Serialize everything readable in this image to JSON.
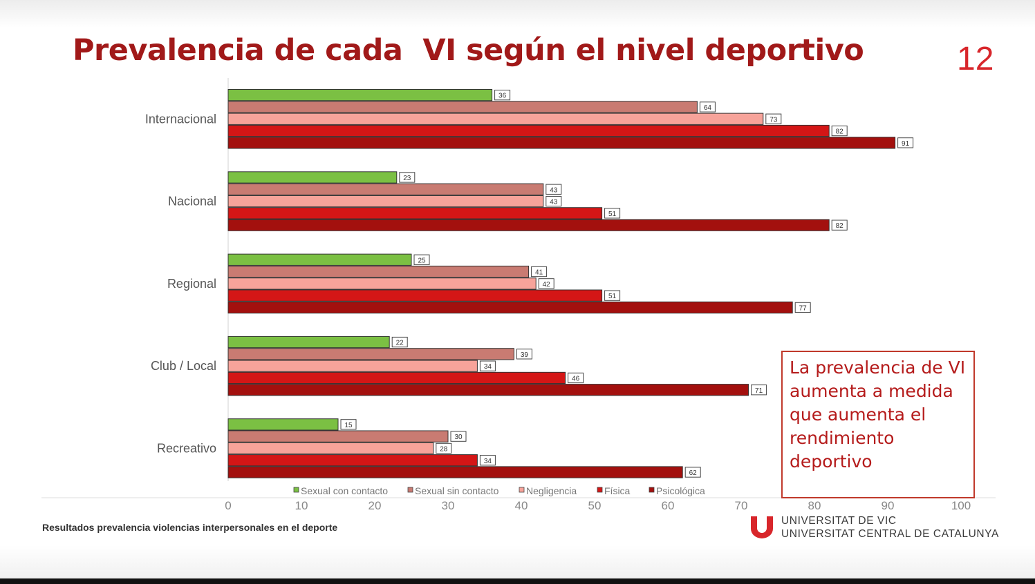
{
  "slide": {
    "title": "Prevalencia de cada  VI según el nivel deportivo",
    "page_number": "12",
    "callout": "La prevalencia de VI aumenta a medida que aumenta el rendimiento deportivo",
    "footer": "Resultados prevalencia violencias interpersonales en el deporte",
    "institution_line1": "UNIVERSITAT DE VIC",
    "institution_line2": "UNIVERSITAT CENTRAL DE CATALUNYA",
    "logo_icon": "university-u-logo",
    "accent_color": "#a11919"
  },
  "chart_data": {
    "type": "bar",
    "orientation": "horizontal",
    "categories": [
      "Internacional",
      "Nacional",
      "Regional",
      "Club / Local",
      "Recreativo"
    ],
    "series": [
      {
        "name": "Sexual con contacto",
        "color": "#7bc043",
        "values": [
          36,
          23,
          25,
          22,
          15
        ]
      },
      {
        "name": "Sexual sin contacto",
        "color": "#c97b72",
        "values": [
          64,
          43,
          41,
          39,
          30
        ]
      },
      {
        "name": "Negligencia",
        "color": "#f7a39a",
        "values": [
          73,
          43,
          42,
          34,
          28
        ]
      },
      {
        "name": "Física",
        "color": "#d41616",
        "values": [
          82,
          51,
          51,
          46,
          34
        ]
      },
      {
        "name": "Psicológica",
        "color": "#a3100e",
        "values": [
          91,
          82,
          77,
          71,
          62
        ]
      }
    ],
    "xlim": [
      0,
      100
    ],
    "xticks": [
      0,
      10,
      20,
      30,
      40,
      50,
      60,
      70,
      80,
      90,
      100
    ],
    "legend_position": "bottom",
    "data_labels": true
  }
}
